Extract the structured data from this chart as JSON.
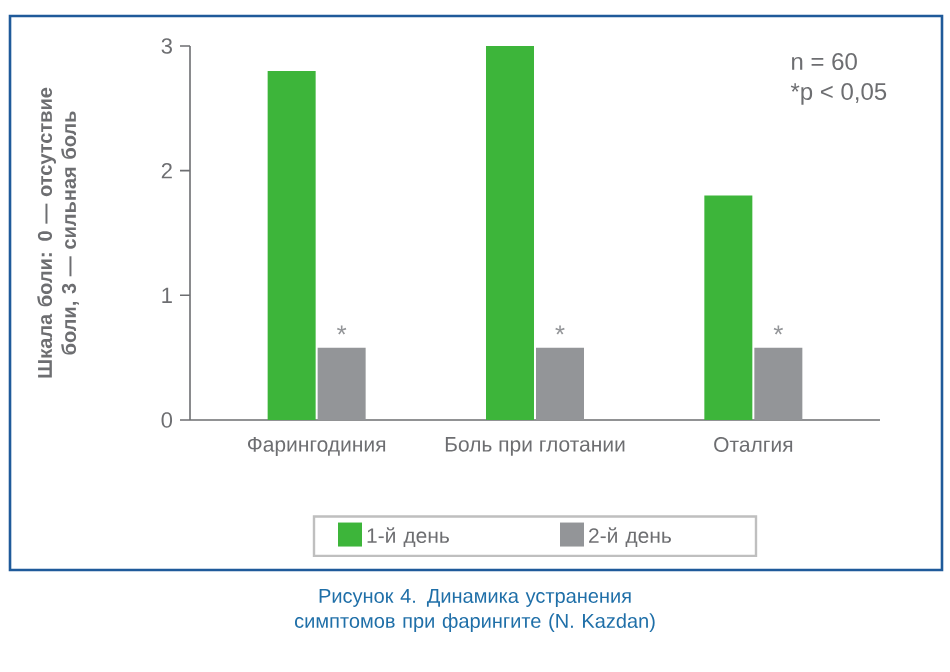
{
  "chart_data": {
    "type": "bar",
    "ylabel": "Шкала боли: 0 — отсутствие боли, 3 — сильная боль",
    "categories": [
      "Фарингодиния",
      "Боль при глотании",
      "Оталгия"
    ],
    "series": [
      {
        "name": "1-й день",
        "color": "#3db53a",
        "values": [
          2.8,
          3.0,
          1.8
        ]
      },
      {
        "name": "2-й день",
        "color": "#939598",
        "values": [
          0.58,
          0.58,
          0.58
        ],
        "value_labels": [
          "*",
          "*",
          "*"
        ]
      }
    ],
    "ylim": [
      0,
      3
    ],
    "yticks": [
      0,
      1,
      2,
      3
    ],
    "legend": "bottom",
    "annotations": [
      "n = 60",
      "*p < 0,05",
      "Рисунок 4.  Динамика устранения симптомов при фарингите (N. Kazdan)"
    ]
  }
}
